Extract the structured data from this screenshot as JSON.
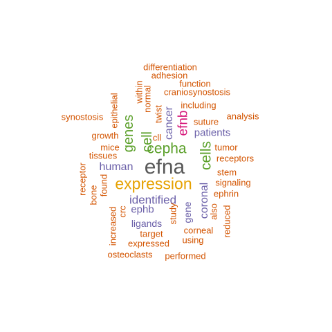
{
  "palette": {
    "orange": "#d35400",
    "purple": "#6a5fa8",
    "green": "#5ba02a",
    "magenta": "#d6187a",
    "gold": "#e6a100",
    "gray": "#595959"
  },
  "words": [
    {
      "text": "efna",
      "color": "#595959"
    },
    {
      "text": "expression",
      "color": "#e6a100"
    },
    {
      "text": "cepha",
      "color": "#5ba02a"
    },
    {
      "text": "cells",
      "color": "#5ba02a"
    },
    {
      "text": "genes",
      "color": "#5ba02a"
    },
    {
      "text": "cell",
      "color": "#5ba02a"
    },
    {
      "text": "efnb",
      "color": "#d6187a"
    },
    {
      "text": "cancer",
      "color": "#6a5fa8"
    },
    {
      "text": "identified",
      "color": "#6a5fa8"
    },
    {
      "text": "human",
      "color": "#6a5fa8"
    },
    {
      "text": "patients",
      "color": "#6a5fa8"
    },
    {
      "text": "coronal",
      "color": "#6a5fa8"
    },
    {
      "text": "ligands",
      "color": "#6a5fa8"
    },
    {
      "text": "ephb",
      "color": "#6a5fa8"
    },
    {
      "text": "gene",
      "color": "#6a5fa8"
    },
    {
      "text": "differentiation",
      "color": "#d35400"
    },
    {
      "text": "adhesion",
      "color": "#d35400"
    },
    {
      "text": "function",
      "color": "#d35400"
    },
    {
      "text": "within",
      "color": "#d35400"
    },
    {
      "text": "normal",
      "color": "#d35400"
    },
    {
      "text": "craniosynostosis",
      "color": "#d35400"
    },
    {
      "text": "epithelial",
      "color": "#d35400"
    },
    {
      "text": "twist",
      "color": "#d35400"
    },
    {
      "text": "including",
      "color": "#d35400"
    },
    {
      "text": "synostosis",
      "color": "#d35400"
    },
    {
      "text": "analysis",
      "color": "#d35400"
    },
    {
      "text": "cll",
      "color": "#d35400"
    },
    {
      "text": "suture",
      "color": "#d35400"
    },
    {
      "text": "growth",
      "color": "#d35400"
    },
    {
      "text": "mice",
      "color": "#d35400"
    },
    {
      "text": "tumor",
      "color": "#d35400"
    },
    {
      "text": "tissues",
      "color": "#d35400"
    },
    {
      "text": "receptors",
      "color": "#d35400"
    },
    {
      "text": "receptor",
      "color": "#d35400"
    },
    {
      "text": "stem",
      "color": "#d35400"
    },
    {
      "text": "found",
      "color": "#d35400"
    },
    {
      "text": "signaling",
      "color": "#d35400"
    },
    {
      "text": "bone",
      "color": "#d35400"
    },
    {
      "text": "ephrin",
      "color": "#d35400"
    },
    {
      "text": "crc",
      "color": "#d35400"
    },
    {
      "text": "study",
      "color": "#d35400"
    },
    {
      "text": "also",
      "color": "#d35400"
    },
    {
      "text": "increased",
      "color": "#d35400"
    },
    {
      "text": "reduced",
      "color": "#d35400"
    },
    {
      "text": "corneal",
      "color": "#d35400"
    },
    {
      "text": "target",
      "color": "#d35400"
    },
    {
      "text": "using",
      "color": "#d35400"
    },
    {
      "text": "expressed",
      "color": "#d35400"
    },
    {
      "text": "osteoclasts",
      "color": "#d35400"
    },
    {
      "text": "performed",
      "color": "#d35400"
    }
  ]
}
